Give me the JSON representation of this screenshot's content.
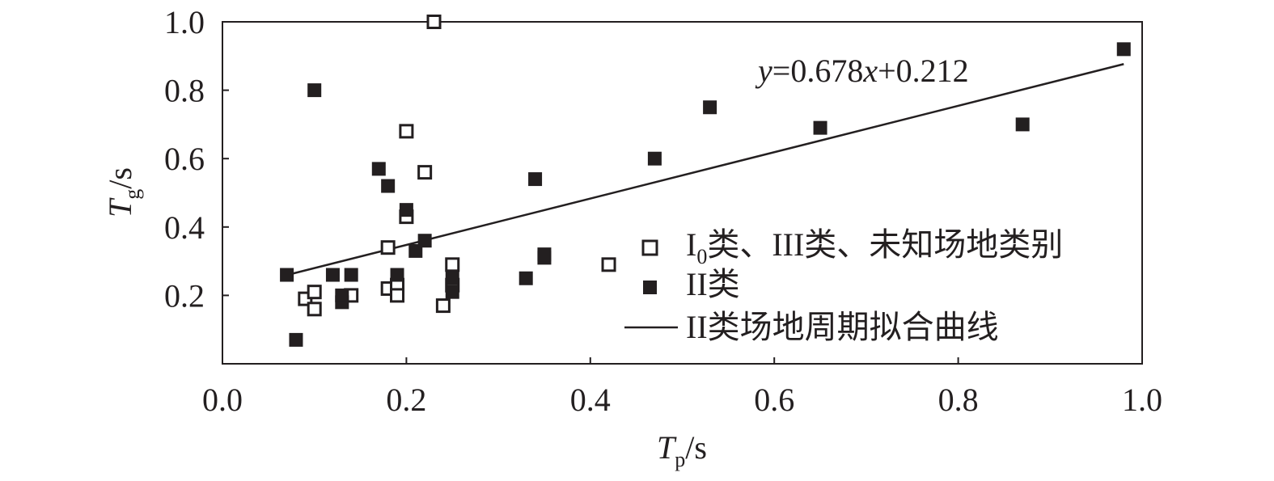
{
  "chart_data": {
    "type": "scatter",
    "xlabel": {
      "main": "T",
      "sub": "p",
      "unit": "/s"
    },
    "ylabel": {
      "main": "T",
      "sub": "g",
      "unit": "/s"
    },
    "xlim": [
      0.0,
      1.0
    ],
    "ylim": [
      0.0,
      1.0
    ],
    "xticks": [
      "0.0",
      "0.2",
      "0.4",
      "0.6",
      "0.8",
      "1.0"
    ],
    "yticks": [
      "0.2",
      "0.4",
      "0.6",
      "0.8",
      "1.0"
    ],
    "grid": false,
    "legend_position": "right",
    "series": [
      {
        "name_parts": {
          "pre": "I",
          "sub": "0",
          "post": "类、III类、未知场地类别"
        },
        "marker": "open-square",
        "color": "#231f20",
        "points": [
          [
            0.09,
            0.19
          ],
          [
            0.1,
            0.21
          ],
          [
            0.1,
            0.16
          ],
          [
            0.14,
            0.2
          ],
          [
            0.18,
            0.22
          ],
          [
            0.18,
            0.34
          ],
          [
            0.19,
            0.23
          ],
          [
            0.19,
            0.2
          ],
          [
            0.2,
            0.68
          ],
          [
            0.2,
            0.43
          ],
          [
            0.22,
            0.56
          ],
          [
            0.24,
            0.17
          ],
          [
            0.25,
            0.29
          ],
          [
            0.25,
            0.23
          ],
          [
            0.42,
            0.29
          ],
          [
            0.23,
            1.0
          ]
        ]
      },
      {
        "name": "II类",
        "marker": "filled-square",
        "color": "#231f20",
        "points": [
          [
            0.07,
            0.26
          ],
          [
            0.08,
            0.07
          ],
          [
            0.1,
            0.8
          ],
          [
            0.12,
            0.26
          ],
          [
            0.13,
            0.18
          ],
          [
            0.13,
            0.2
          ],
          [
            0.14,
            0.26
          ],
          [
            0.17,
            0.57
          ],
          [
            0.18,
            0.52
          ],
          [
            0.19,
            0.26
          ],
          [
            0.2,
            0.45
          ],
          [
            0.21,
            0.33
          ],
          [
            0.22,
            0.36
          ],
          [
            0.25,
            0.21
          ],
          [
            0.25,
            0.25
          ],
          [
            0.33,
            0.25
          ],
          [
            0.34,
            0.54
          ],
          [
            0.35,
            0.31
          ],
          [
            0.35,
            0.32
          ],
          [
            0.47,
            0.6
          ],
          [
            0.53,
            0.75
          ],
          [
            0.65,
            0.69
          ],
          [
            0.87,
            0.7
          ],
          [
            0.98,
            0.92
          ]
        ]
      }
    ],
    "fit_line": {
      "name": "II类场地周期拟合曲线",
      "slope": 0.678,
      "intercept": 0.212,
      "x_range": [
        0.07,
        0.98
      ],
      "equation": {
        "y": "y",
        "mid": "=0.678",
        "x": "x",
        "tail": "+0.212"
      }
    }
  }
}
